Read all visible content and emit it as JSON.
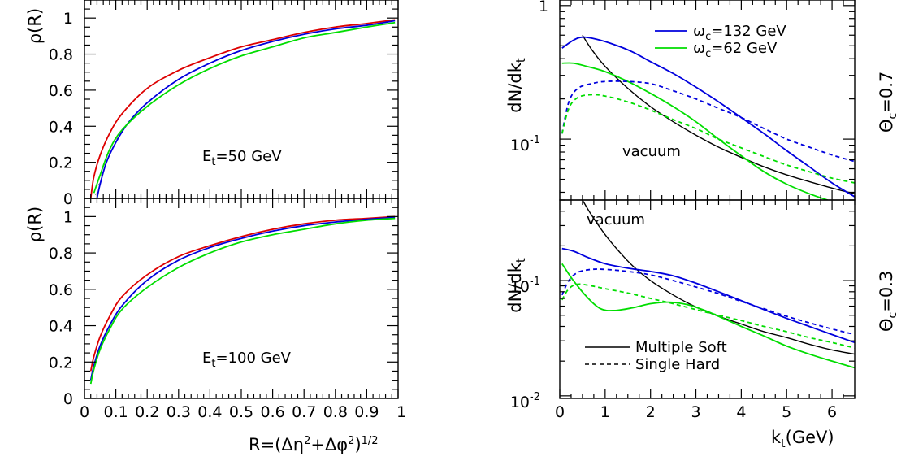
{
  "chart_data": [
    {
      "type": "line",
      "panel": "left-top",
      "ylabel": "ρ(R)",
      "annotation": {
        "main": "E",
        "sub": "t",
        "rest": "=50 GeV"
      },
      "xlim": [
        0,
        1
      ],
      "ylim": [
        0,
        1.1
      ],
      "yticks": [
        0,
        0.2,
        0.4,
        0.6,
        0.8,
        1
      ],
      "ytick_labels": [
        "0",
        "0.2",
        "0.4",
        "0.6",
        "0.8",
        "1"
      ],
      "series": [
        {
          "color": "#dd0000",
          "x": [
            0.02,
            0.03,
            0.05,
            0.08,
            0.12,
            0.2,
            0.3,
            0.4,
            0.5,
            0.6,
            0.7,
            0.8,
            0.9,
            0.99
          ],
          "y": [
            0.0,
            0.12,
            0.24,
            0.36,
            0.47,
            0.61,
            0.71,
            0.78,
            0.84,
            0.88,
            0.92,
            0.95,
            0.97,
            0.99
          ]
        },
        {
          "color": "#0000dd",
          "x": [
            0.04,
            0.05,
            0.07,
            0.1,
            0.14,
            0.2,
            0.3,
            0.4,
            0.5,
            0.6,
            0.7,
            0.8,
            0.9,
            0.99
          ],
          "y": [
            0.0,
            0.08,
            0.2,
            0.31,
            0.42,
            0.53,
            0.66,
            0.75,
            0.82,
            0.87,
            0.91,
            0.94,
            0.96,
            0.985
          ]
        },
        {
          "color": "#00dd00",
          "x": [
            0.03,
            0.05,
            0.08,
            0.12,
            0.2,
            0.3,
            0.4,
            0.5,
            0.6,
            0.7,
            0.8,
            0.9,
            0.99
          ],
          "y": [
            0.03,
            0.13,
            0.27,
            0.38,
            0.51,
            0.63,
            0.72,
            0.79,
            0.84,
            0.89,
            0.92,
            0.95,
            0.975
          ]
        }
      ]
    },
    {
      "type": "line",
      "panel": "left-bottom",
      "ylabel": "ρ(R)",
      "xlabel": "R=(Δη²+Δφ²)^1/2",
      "annotation": {
        "main": "E",
        "sub": "t",
        "rest": "=100 GeV"
      },
      "xlim": [
        0,
        1
      ],
      "ylim": [
        0,
        1.1
      ],
      "yticks": [
        0,
        0.2,
        0.4,
        0.6,
        0.8,
        1
      ],
      "ytick_labels": [
        "0",
        "0.2",
        "0.4",
        "0.6",
        "0.8",
        "1"
      ],
      "xticks": [
        0,
        0.1,
        0.2,
        0.3,
        0.4,
        0.5,
        0.6,
        0.7,
        0.8,
        0.9,
        1
      ],
      "xtick_labels": [
        "0",
        "0.1",
        "0.2",
        "0.3",
        "0.4",
        "0.5",
        "0.6",
        "0.7",
        "0.8",
        "0.9",
        "1"
      ],
      "series": [
        {
          "color": "#dd0000",
          "x": [
            0.02,
            0.03,
            0.05,
            0.08,
            0.12,
            0.2,
            0.3,
            0.4,
            0.5,
            0.6,
            0.7,
            0.8,
            0.9,
            0.99
          ],
          "y": [
            0.15,
            0.23,
            0.34,
            0.45,
            0.56,
            0.68,
            0.78,
            0.84,
            0.89,
            0.93,
            0.96,
            0.98,
            0.99,
            1.0
          ]
        },
        {
          "color": "#0000dd",
          "x": [
            0.02,
            0.03,
            0.05,
            0.08,
            0.12,
            0.2,
            0.3,
            0.4,
            0.5,
            0.6,
            0.7,
            0.8,
            0.9,
            0.99
          ],
          "y": [
            0.1,
            0.18,
            0.29,
            0.4,
            0.51,
            0.65,
            0.76,
            0.83,
            0.88,
            0.92,
            0.95,
            0.97,
            0.985,
            0.995
          ]
        },
        {
          "color": "#00dd00",
          "x": [
            0.02,
            0.03,
            0.05,
            0.08,
            0.12,
            0.2,
            0.3,
            0.4,
            0.5,
            0.6,
            0.7,
            0.8,
            0.9,
            0.99
          ],
          "y": [
            0.08,
            0.16,
            0.27,
            0.38,
            0.49,
            0.61,
            0.72,
            0.8,
            0.86,
            0.9,
            0.93,
            0.96,
            0.98,
            0.99
          ]
        }
      ]
    },
    {
      "type": "line",
      "panel": "right-top",
      "ylabel": "dN/dk_t",
      "side_label": "Θ_c=0.7",
      "annotation": "vacuum",
      "yscale": "log",
      "xlim": [
        0,
        6.5
      ],
      "ylim": [
        0.035,
        1.1
      ],
      "ytick_labels": [
        "10^-1",
        "1"
      ],
      "legend": [
        {
          "color": "#0000dd",
          "label": "ω_c=132 GeV"
        },
        {
          "color": "#00dd00",
          "label": "ω_c=62 GeV"
        }
      ],
      "series": [
        {
          "color": "#000000",
          "style": "solid",
          "x": [
            0.5,
            0.7,
            1.0,
            1.5,
            2.0,
            2.5,
            3.0,
            3.5,
            4.0,
            4.5,
            5.0,
            5.5,
            6.0,
            6.5
          ],
          "y": [
            0.6,
            0.47,
            0.35,
            0.24,
            0.175,
            0.135,
            0.107,
            0.087,
            0.073,
            0.062,
            0.054,
            0.048,
            0.043,
            0.039
          ]
        },
        {
          "color": "#0000dd",
          "style": "solid",
          "x": [
            0.05,
            0.3,
            0.5,
            0.8,
            1.2,
            1.6,
            2.0,
            2.5,
            3.0,
            3.5,
            4.0,
            4.5,
            5.0,
            5.5,
            6.0,
            6.5
          ],
          "y": [
            0.48,
            0.55,
            0.58,
            0.56,
            0.51,
            0.45,
            0.38,
            0.31,
            0.245,
            0.19,
            0.145,
            0.11,
            0.082,
            0.062,
            0.047,
            0.037
          ]
        },
        {
          "color": "#00dd00",
          "style": "solid",
          "x": [
            0.05,
            0.3,
            0.6,
            1.0,
            1.5,
            2.0,
            2.5,
            3.0,
            3.5,
            4.0,
            4.5,
            5.0,
            5.5,
            5.9
          ],
          "y": [
            0.37,
            0.37,
            0.35,
            0.32,
            0.27,
            0.22,
            0.175,
            0.135,
            0.1,
            0.075,
            0.057,
            0.046,
            0.039,
            0.035
          ]
        },
        {
          "color": "#0000dd",
          "style": "dashed",
          "x": [
            0.05,
            0.2,
            0.4,
            0.7,
            1.0,
            1.5,
            2.0,
            2.5,
            3.0,
            3.5,
            4.0,
            4.5,
            5.0,
            5.5,
            6.0,
            6.5
          ],
          "y": [
            0.11,
            0.19,
            0.24,
            0.26,
            0.27,
            0.27,
            0.26,
            0.23,
            0.2,
            0.17,
            0.145,
            0.12,
            0.1,
            0.087,
            0.076,
            0.068
          ]
        },
        {
          "color": "#00dd00",
          "style": "dashed",
          "x": [
            0.05,
            0.2,
            0.4,
            0.7,
            1.0,
            1.5,
            2.0,
            2.5,
            3.0,
            3.5,
            4.0,
            4.5,
            5.0,
            5.5,
            6.0,
            6.5
          ],
          "y": [
            0.11,
            0.17,
            0.205,
            0.215,
            0.21,
            0.19,
            0.165,
            0.14,
            0.12,
            0.1,
            0.086,
            0.074,
            0.064,
            0.057,
            0.051,
            0.047
          ]
        }
      ]
    },
    {
      "type": "line",
      "panel": "right-bottom",
      "ylabel": "dN/dk_t",
      "xlabel": "k_t(GeV)",
      "side_label": "Θ_c=0.3",
      "annotation": "vacuum",
      "yscale": "log",
      "xlim": [
        0,
        6.5
      ],
      "ylim": [
        0.0095,
        0.5
      ],
      "xticks": [
        0,
        1,
        2,
        3,
        4,
        5,
        6
      ],
      "xtick_labels": [
        "0",
        "1",
        "2",
        "3",
        "4",
        "5",
        "6"
      ],
      "ytick_labels": [
        "10^-2",
        "10^-1"
      ],
      "legend": [
        {
          "style": "solid",
          "label": "Multiple Soft"
        },
        {
          "style": "dashed",
          "label": "Single Hard"
        }
      ],
      "series": [
        {
          "color": "#000000",
          "style": "solid",
          "x": [
            0.5,
            0.7,
            1.0,
            1.3,
            1.6,
            2.0,
            2.5,
            3.0,
            3.5,
            4.0,
            4.5,
            5.0,
            5.5,
            6.0,
            6.5
          ],
          "y": [
            0.5,
            0.37,
            0.25,
            0.18,
            0.135,
            0.1,
            0.075,
            0.059,
            0.049,
            0.042,
            0.036,
            0.032,
            0.028,
            0.025,
            0.023
          ]
        },
        {
          "color": "#0000dd",
          "style": "solid",
          "x": [
            0.05,
            0.3,
            0.6,
            1.0,
            1.5,
            2.0,
            2.5,
            3.0,
            3.5,
            4.0,
            4.5,
            5.0,
            5.5,
            6.0,
            6.5
          ],
          "y": [
            0.19,
            0.18,
            0.16,
            0.14,
            0.128,
            0.12,
            0.11,
            0.095,
            0.08,
            0.067,
            0.056,
            0.047,
            0.04,
            0.034,
            0.029
          ]
        },
        {
          "color": "#00dd00",
          "style": "solid",
          "x": [
            0.05,
            0.3,
            0.6,
            0.9,
            1.2,
            1.6,
            2.0,
            2.4,
            2.8,
            3.2,
            3.6,
            4.0,
            4.5,
            5.0,
            5.5,
            6.0,
            6.5
          ],
          "y": [
            0.14,
            0.1,
            0.072,
            0.057,
            0.055,
            0.058,
            0.063,
            0.065,
            0.062,
            0.055,
            0.047,
            0.04,
            0.033,
            0.027,
            0.023,
            0.02,
            0.0175
          ]
        },
        {
          "color": "#0000dd",
          "style": "dashed",
          "x": [
            0.05,
            0.2,
            0.4,
            0.7,
            1.0,
            1.5,
            2.0,
            2.5,
            3.0,
            3.5,
            4.0,
            4.5,
            5.0,
            5.5,
            6.0,
            6.5
          ],
          "y": [
            0.075,
            0.1,
            0.118,
            0.125,
            0.125,
            0.12,
            0.112,
            0.1,
            0.088,
            0.077,
            0.066,
            0.057,
            0.049,
            0.043,
            0.038,
            0.034
          ]
        },
        {
          "color": "#00dd00",
          "style": "dashed",
          "x": [
            0.05,
            0.2,
            0.4,
            0.7,
            1.0,
            1.5,
            2.0,
            2.5,
            3.0,
            3.5,
            4.0,
            4.5,
            5.0,
            5.5,
            6.0,
            6.5
          ],
          "y": [
            0.068,
            0.085,
            0.093,
            0.09,
            0.085,
            0.078,
            0.07,
            0.063,
            0.056,
            0.05,
            0.045,
            0.04,
            0.036,
            0.032,
            0.029,
            0.026
          ]
        }
      ]
    }
  ]
}
